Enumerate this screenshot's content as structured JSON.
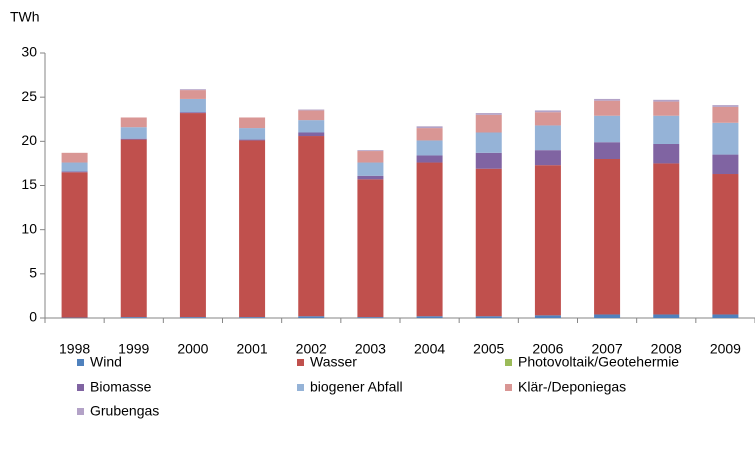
{
  "chart_data": {
    "type": "stacked_bar",
    "y_axis_label": "TWh",
    "categories": [
      "1998",
      "1999",
      "2000",
      "2001",
      "2002",
      "2003",
      "2004",
      "2005",
      "2006",
      "2007",
      "2008",
      "2009"
    ],
    "series": [
      {
        "name": "Wind",
        "color": "#4f81bd",
        "values": [
          0.05,
          0.1,
          0.1,
          0.1,
          0.2,
          0.1,
          0.2,
          0.2,
          0.3,
          0.4,
          0.4,
          0.4
        ]
      },
      {
        "name": "Wasser",
        "color": "#c0504d",
        "values": [
          16.45,
          20.1,
          23.1,
          20.0,
          20.4,
          15.6,
          17.4,
          16.7,
          17.0,
          17.6,
          17.1,
          15.9
        ]
      },
      {
        "name": "Photovoltaik/Geotehermie",
        "color": "#9bbb59",
        "values": [
          0,
          0,
          0,
          0,
          0,
          0,
          0,
          0,
          0,
          0,
          0,
          0
        ]
      },
      {
        "name": "Biomasse",
        "color": "#8064a2",
        "values": [
          0.1,
          0.1,
          0.1,
          0.1,
          0.4,
          0.4,
          0.8,
          1.8,
          1.7,
          1.9,
          2.2,
          2.2
        ]
      },
      {
        "name": "biogener Abfall",
        "color": "#95b3d7",
        "values": [
          1.0,
          1.3,
          1.5,
          1.3,
          1.4,
          1.5,
          1.7,
          2.3,
          2.8,
          3.0,
          3.2,
          3.6
        ]
      },
      {
        "name": "Klär-/Deponiegas",
        "color": "#d99694",
        "values": [
          1.1,
          1.1,
          1.0,
          1.2,
          1.1,
          1.3,
          1.4,
          2.0,
          1.5,
          1.7,
          1.6,
          1.8
        ]
      },
      {
        "name": "Grubengas",
        "color": "#b3a2c7",
        "values": [
          0,
          0,
          0.1,
          0,
          0.1,
          0.1,
          0.2,
          0.2,
          0.2,
          0.2,
          0.2,
          0.2
        ]
      }
    ],
    "ylim": [
      0,
      30
    ],
    "yticks": [
      0,
      5,
      10,
      15,
      20,
      25,
      30
    ],
    "grid": false,
    "legend": "bottom"
  }
}
